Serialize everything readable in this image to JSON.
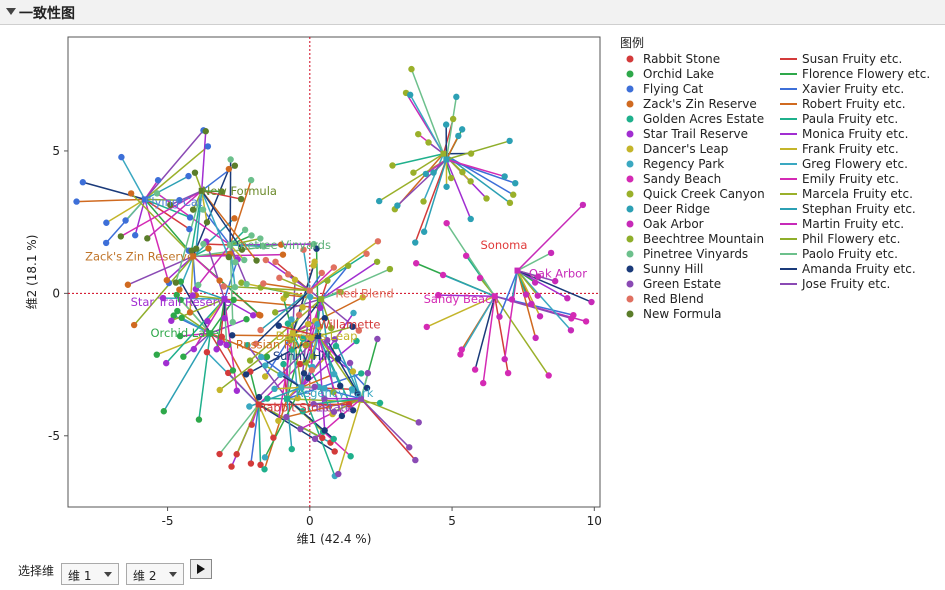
{
  "header": {
    "title": "一致性图"
  },
  "controls": {
    "choose_label": "选择维",
    "dim_x": "维 1",
    "dim_y": "维 2"
  },
  "colors": {
    "axis_ref": "#d0021b",
    "frame": "#555555"
  },
  "chart_data": {
    "type": "scatter",
    "title": "一致性图",
    "xlabel": "维1   (42.4 %)",
    "ylabel": "维2   (18.1 %)",
    "xlim": [
      -8.5,
      10.2
    ],
    "ylim": [
      -7.5,
      9.0
    ],
    "xticks": [
      -5,
      0,
      5,
      10
    ],
    "yticks": [
      -5,
      0,
      5
    ],
    "legend_title": "图例",
    "products": [
      {
        "name": "Rabbit Stone",
        "color": "#d33a3a",
        "x": -1.8,
        "y": -3.9
      },
      {
        "name": "Orchid Lake",
        "color": "#2ea84a",
        "x": -3.5,
        "y": -1.4
      },
      {
        "name": "Flying Cat",
        "color": "#3d6fd8",
        "x": -5.8,
        "y": 3.3
      },
      {
        "name": "Zack's Zin Reserve",
        "color": "#d06a20",
        "x": -4.1,
        "y": 1.3
      },
      {
        "name": "Golden Acres Estate",
        "color": "#1fb08c",
        "x": -0.8,
        "y": -3.7
      },
      {
        "name": "Star Trail Reserve",
        "color": "#a12ed1",
        "x": -3.0,
        "y": -0.2
      },
      {
        "name": "Dancer's Leap",
        "color": "#c4b52a",
        "x": -0.6,
        "y": -1.4
      },
      {
        "name": "Regency Park",
        "color": "#3aa8c1",
        "x": -0.3,
        "y": -3.3
      },
      {
        "name": "Sandy Beach",
        "color": "#d42ab4",
        "x": 6.5,
        "y": -0.1
      },
      {
        "name": "Quick Creek Canyon",
        "color": "#9ab02a",
        "x": 4.7,
        "y": 4.9
      },
      {
        "name": "Deer Ridge",
        "color": "#2ca0b4",
        "x": 4.8,
        "y": 4.7
      },
      {
        "name": "Oak Arbor",
        "color": "#c72ab8",
        "x": 7.3,
        "y": 0.8
      },
      {
        "name": "Beechtree Mountain",
        "color": "#8fae2a",
        "x": 0.4,
        "y": -0.2
      },
      {
        "name": "Pinetree Vinyards",
        "color": "#6cc08c",
        "x": -2.8,
        "y": 1.7
      },
      {
        "name": "Sunny Hill",
        "color": "#1a3a7a",
        "x": 0.3,
        "y": -1.5
      },
      {
        "name": "Green Estate",
        "color": "#8a4ab4",
        "x": 1.8,
        "y": -3.7
      },
      {
        "name": "Red Blend",
        "color": "#e07060",
        "x": 0.0,
        "y": 0.1
      },
      {
        "name": "New Formula",
        "color": "#5b7d2a",
        "x": -3.8,
        "y": 3.6
      }
    ],
    "product_labels": [
      {
        "text": "New Formula",
        "color": "#6b8a2a",
        "x": -3.8,
        "y": 3.6
      },
      {
        "text": "Flying Cat",
        "color": "#4d7fd8",
        "x": -5.8,
        "y": 3.2
      },
      {
        "text": "Pinetree Vinyards",
        "color": "#5ab078",
        "x": -2.8,
        "y": 1.7
      },
      {
        "text": "Zack's Zin Reserve",
        "color": "#c0752a",
        "x": -7.9,
        "y": 1.3
      },
      {
        "text": "Star Trail Reserve",
        "color": "#a12ed1",
        "x": -6.3,
        "y": -0.3
      },
      {
        "text": "Orchid Lake",
        "color": "#2ea84a",
        "x": -5.6,
        "y": -1.4
      },
      {
        "text": "Dancer's Leap",
        "color": "#c4b52a",
        "x": -1.2,
        "y": -1.5
      },
      {
        "text": "Russian River",
        "color": "#d06a20",
        "x": -2.6,
        "y": -1.8
      },
      {
        "text": "Sunny Hill",
        "color": "#1a3a7a",
        "x": -1.3,
        "y": -2.2
      },
      {
        "text": "Red Blend",
        "color": "#e07060",
        "x": 0.9,
        "y": 0.0
      },
      {
        "text": "Willamette",
        "color": "#d33a3a",
        "x": 0.3,
        "y": -1.1
      },
      {
        "text": "Regency Park",
        "color": "#3aa8c1",
        "x": -0.5,
        "y": -3.5
      },
      {
        "text": "Rabbit Stone",
        "color": "#d33a3a",
        "x": -1.8,
        "y": -4.0
      },
      {
        "text": "Estate",
        "color": "#8a4ab4",
        "x": 0.2,
        "y": -4.0
      },
      {
        "text": "Sonoma",
        "color": "#e03a3a",
        "x": 6.0,
        "y": 1.7
      },
      {
        "text": "Oak Arbor",
        "color": "#c72ab8",
        "x": 7.7,
        "y": 0.7
      },
      {
        "text": "Sandy Beach",
        "color": "#d42ab4",
        "x": 4.0,
        "y": -0.2
      }
    ],
    "tasters": [
      {
        "name": "Susan Fruity etc.",
        "color": "#d33a3a"
      },
      {
        "name": "Florence Flowery etc.",
        "color": "#2ea84a"
      },
      {
        "name": "Xavier Fruity etc.",
        "color": "#3d6fd8"
      },
      {
        "name": "Robert Fruity etc.",
        "color": "#d06a20"
      },
      {
        "name": "Paula Fruity etc.",
        "color": "#1fb08c"
      },
      {
        "name": "Monica Fruity etc.",
        "color": "#a12ed1"
      },
      {
        "name": "Frank Fruity etc.",
        "color": "#c4b52a"
      },
      {
        "name": "Greg Flowery etc.",
        "color": "#3aa8c1"
      },
      {
        "name": "Emily Fruity etc.",
        "color": "#d42ab4"
      },
      {
        "name": "Marcela Fruity etc.",
        "color": "#9ab02a"
      },
      {
        "name": "Stephan Fruity etc.",
        "color": "#2ca0b4"
      },
      {
        "name": "Martin Fruity etc.",
        "color": "#c72ab8"
      },
      {
        "name": "Phil Flowery etc.",
        "color": "#8fae2a"
      },
      {
        "name": "Paolo Fruity etc.",
        "color": "#6cc08c"
      },
      {
        "name": "Amanda Fruity etc.",
        "color": "#1a3a7a"
      },
      {
        "name": "Jose Fruity etc.",
        "color": "#8a4ab4"
      }
    ]
  }
}
